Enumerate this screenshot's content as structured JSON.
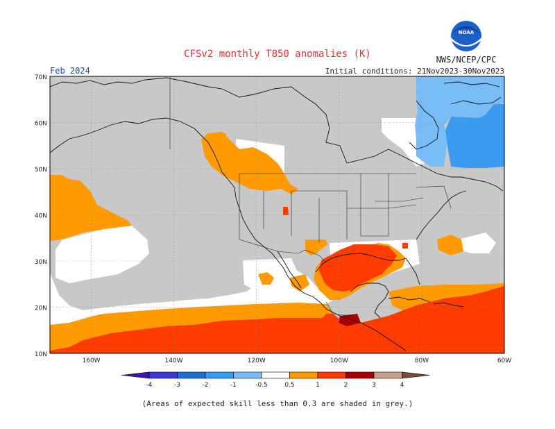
{
  "header": {
    "title": "CFSv2 monthly T850 anomalies (K)",
    "agency": "NWS/NCEP/CPC",
    "logo_text": "NOAA",
    "period": "Feb 2024",
    "initial_conditions": "Initial conditions: 21Nov2023-30Nov2023"
  },
  "axes": {
    "lat_labels": [
      "70N",
      "60N",
      "50N",
      "40N",
      "30N",
      "20N",
      "10N"
    ],
    "lon_labels": [
      "160W",
      "140W",
      "120W",
      "100W",
      "80W",
      "60W"
    ],
    "lat_range": [
      10,
      70
    ],
    "lon_range": [
      -170,
      -60
    ]
  },
  "colorbar": {
    "labels": [
      "-4",
      "-3",
      "-2",
      "-1",
      "-0.5",
      "0.5",
      "1",
      "2",
      "3",
      "4"
    ],
    "colors": [
      "#3a16b0",
      "#3a3ad4",
      "#1f6fd0",
      "#3a9cf0",
      "#78bcf8",
      "#ffffff",
      "#ff9a00",
      "#ff3c00",
      "#a80000",
      "#c8a090",
      "#7a4a3a"
    ]
  },
  "footnote": "(Areas of expected skill less than 0.3 are shaded in grey.)",
  "colors": {
    "grey_low_skill": "#c8c8c8",
    "anom_0_5_to_1": "#ff9a00",
    "anom_1_to_2": "#ff3c00",
    "anom_2_to_3": "#a80000",
    "anom_neg_1_to_neg_0_5": "#78bcf8",
    "anom_neg_2_to_neg_1": "#3a9cf0",
    "title_red": "#e03030",
    "label_blue": "#2040c0"
  }
}
